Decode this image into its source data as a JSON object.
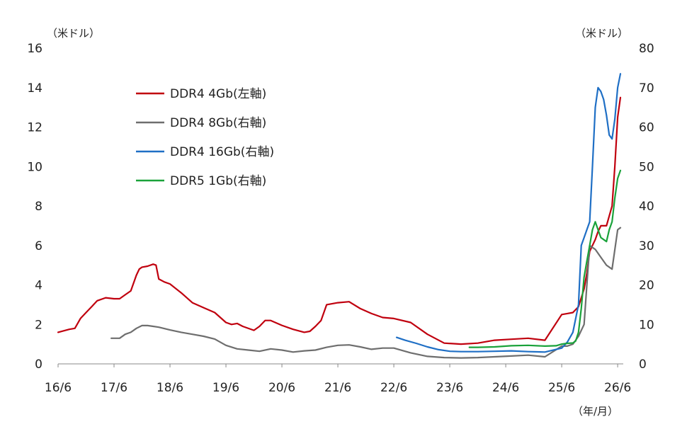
{
  "chart_data": {
    "type": "line",
    "title": "",
    "left_axis": {
      "unit_label": "（米ドル）",
      "ylim": [
        0,
        16
      ],
      "ticks": [
        "0",
        "2",
        "4",
        "6",
        "8",
        "10",
        "12",
        "14",
        "16"
      ]
    },
    "right_axis": {
      "unit_label": "（米ドル）",
      "ylim": [
        0,
        80
      ],
      "ticks": [
        "0",
        "10",
        "20",
        "30",
        "40",
        "50",
        "60",
        "70",
        "80"
      ]
    },
    "x_axis": {
      "unit_label": "（年/月）",
      "ticks": [
        "16/6",
        "17/6",
        "18/6",
        "19/6",
        "20/6",
        "21/6",
        "22/6",
        "23/6",
        "24/6",
        "25/6",
        "26/6"
      ],
      "xlim": [
        0,
        10.1
      ]
    },
    "grid": false,
    "legend_position": "top-left",
    "series": [
      {
        "name": "DDR4 4Gb(左軸)",
        "axis": "left",
        "color": "#c0000e",
        "x": [
          0,
          0.2,
          0.3,
          0.4,
          0.5,
          0.6,
          0.7,
          0.85,
          1.0,
          1.1,
          1.2,
          1.3,
          1.4,
          1.45,
          1.5,
          1.6,
          1.7,
          1.75,
          1.8,
          1.9,
          2.0,
          2.2,
          2.4,
          2.6,
          2.8,
          3.0,
          3.1,
          3.2,
          3.3,
          3.5,
          3.6,
          3.7,
          3.8,
          4.0,
          4.2,
          4.4,
          4.5,
          4.6,
          4.7,
          4.8,
          5.0,
          5.2,
          5.4,
          5.6,
          5.8,
          6.0,
          6.3,
          6.6,
          6.9,
          7.2,
          7.5,
          7.8,
          8.1,
          8.4,
          8.7,
          9.0,
          9.1,
          9.2,
          9.3,
          9.4,
          9.45,
          9.5,
          9.55,
          9.6,
          9.65,
          9.7,
          9.8,
          9.9,
          9.95,
          10.0,
          10.05
        ],
        "values": [
          1.6,
          1.75,
          1.8,
          2.3,
          2.6,
          2.9,
          3.2,
          3.35,
          3.3,
          3.3,
          3.5,
          3.7,
          4.5,
          4.8,
          4.9,
          4.95,
          5.05,
          5.0,
          4.3,
          4.15,
          4.05,
          3.6,
          3.1,
          2.85,
          2.6,
          2.1,
          2.0,
          2.05,
          1.9,
          1.7,
          1.9,
          2.2,
          2.2,
          1.95,
          1.75,
          1.6,
          1.65,
          1.9,
          2.2,
          3.0,
          3.1,
          3.15,
          2.8,
          2.55,
          2.35,
          2.3,
          2.1,
          1.5,
          1.05,
          1.0,
          1.05,
          1.2,
          1.25,
          1.3,
          1.2,
          2.5,
          2.55,
          2.6,
          2.9,
          3.8,
          4.6,
          5.7,
          6.0,
          6.3,
          6.7,
          7.0,
          7.0,
          8.0,
          10.0,
          12.5,
          13.5
        ]
      },
      {
        "name": "DDR4 8Gb(右軸)",
        "axis": "right",
        "color": "#6e6e6e",
        "x": [
          0.95,
          1.1,
          1.2,
          1.3,
          1.4,
          1.5,
          1.6,
          1.7,
          1.8,
          2.0,
          2.2,
          2.4,
          2.6,
          2.8,
          3.0,
          3.2,
          3.4,
          3.6,
          3.8,
          4.0,
          4.2,
          4.4,
          4.6,
          4.8,
          5.0,
          5.2,
          5.4,
          5.6,
          5.8,
          6.0,
          6.3,
          6.6,
          6.9,
          7.2,
          7.5,
          7.8,
          8.1,
          8.4,
          8.7,
          9.0,
          9.1,
          9.2,
          9.3,
          9.4,
          9.45,
          9.5,
          9.55,
          9.6,
          9.7,
          9.8,
          9.9,
          10.0,
          10.05
        ],
        "values": [
          6.5,
          6.5,
          7.5,
          8.0,
          9.0,
          9.7,
          9.7,
          9.5,
          9.3,
          8.6,
          8.0,
          7.5,
          7.0,
          6.3,
          4.7,
          3.8,
          3.5,
          3.2,
          3.8,
          3.5,
          3.0,
          3.3,
          3.5,
          4.2,
          4.7,
          4.8,
          4.3,
          3.7,
          4.0,
          4.0,
          2.8,
          1.9,
          1.6,
          1.5,
          1.6,
          1.8,
          2.0,
          2.2,
          1.8,
          4.5,
          4.5,
          5.0,
          7.0,
          10.0,
          20.0,
          30.0,
          29.5,
          29.0,
          27.0,
          25.0,
          24.0,
          34.0,
          34.5
        ]
      },
      {
        "name": "DDR4 16Gb(右軸)",
        "axis": "right",
        "color": "#1f6fc5",
        "x": [
          6.05,
          6.2,
          6.4,
          6.6,
          6.8,
          7.0,
          7.2,
          7.5,
          7.8,
          8.1,
          8.4,
          8.7,
          9.0,
          9.1,
          9.2,
          9.3,
          9.35,
          9.4,
          9.45,
          9.5,
          9.55,
          9.6,
          9.65,
          9.7,
          9.75,
          9.8,
          9.85,
          9.9,
          9.95,
          10.0,
          10.05
        ],
        "values": [
          6.7,
          6.0,
          5.2,
          4.3,
          3.6,
          3.2,
          3.1,
          3.1,
          3.2,
          3.3,
          3.1,
          3.0,
          4.0,
          5.5,
          8.0,
          15.0,
          30.0,
          32.0,
          34.0,
          36.0,
          50.0,
          65.0,
          70.0,
          69.0,
          67.0,
          63.0,
          58.0,
          57.0,
          62.0,
          70.0,
          73.5
        ]
      },
      {
        "name": "DDR5 1Gb(右軸)",
        "axis": "right",
        "color": "#1aa23a",
        "x": [
          7.35,
          7.5,
          7.8,
          8.1,
          8.4,
          8.7,
          8.9,
          9.0,
          9.1,
          9.2,
          9.25,
          9.3,
          9.35,
          9.4,
          9.45,
          9.5,
          9.55,
          9.6,
          9.65,
          9.7,
          9.8,
          9.85,
          9.9,
          9.95,
          10.0,
          10.05
        ],
        "values": [
          4.2,
          4.2,
          4.3,
          4.6,
          4.7,
          4.5,
          4.6,
          5.0,
          5.2,
          5.3,
          5.8,
          8.0,
          14.0,
          22.0,
          26.0,
          30.0,
          34.0,
          36.0,
          34.0,
          32.0,
          31.0,
          34.0,
          36.0,
          42.0,
          47.0,
          49.0
        ]
      }
    ]
  }
}
